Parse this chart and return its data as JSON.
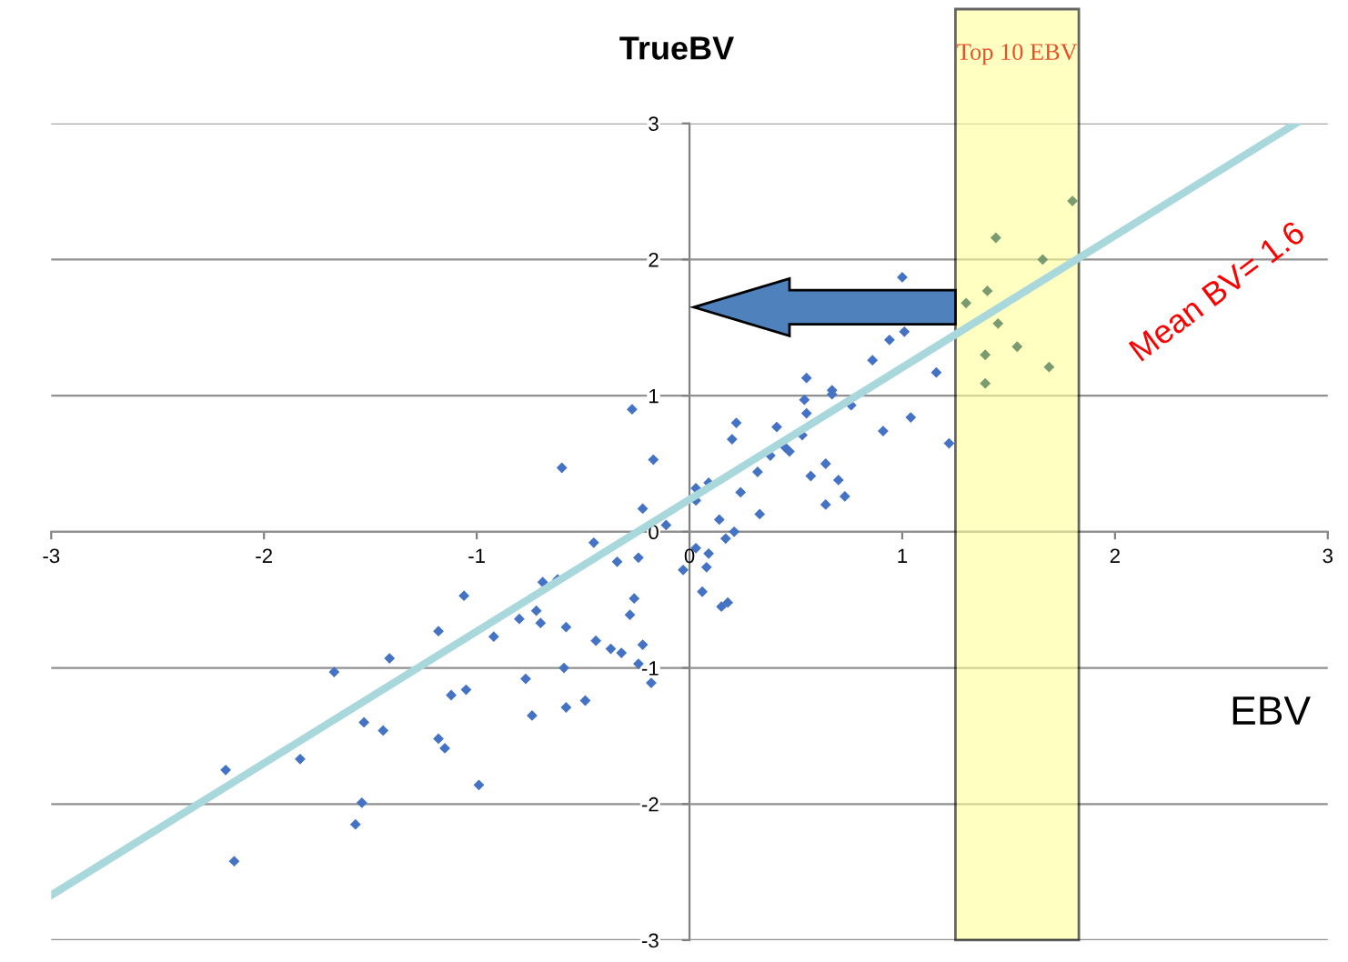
{
  "chart_data": {
    "type": "scatter",
    "xlabel": "EBV",
    "ylabel": "TrueBV",
    "xlim": [
      -3,
      3
    ],
    "ylim": [
      -3,
      3
    ],
    "xticks": [
      -3,
      -2,
      -1,
      0,
      1,
      2,
      3
    ],
    "yticks": [
      -3,
      -2,
      -1,
      0,
      1,
      2,
      3
    ],
    "grid": "y",
    "marker": "diamond",
    "series": [
      {
        "colors": [
          "#4472c4",
          "#4472c4",
          "#4472c4",
          "#4472c4",
          "#4472c4",
          "#4472c4",
          "#4472c4",
          "#4472c4",
          "#4472c4",
          "#4472c4",
          "#4472c4",
          "#4472c4",
          "#4472c4",
          "#4472c4",
          "#4472c4",
          "#4472c4",
          "#4472c4",
          "#4472c4",
          "#4472c4",
          "#4472c4",
          "#4472c4",
          "#4472c4",
          "#4472c4",
          "#4472c4",
          "#4472c4",
          "#4472c4",
          "#4472c4",
          "#4472c4",
          "#4472c4",
          "#4472c4",
          "#4472c4",
          "#4472c4",
          "#4472c4",
          "#4472c4",
          "#4472c4",
          "#4472c4",
          "#4472c4",
          "#4472c4",
          "#4472c4",
          "#4472c4",
          "#4472c4",
          "#4472c4",
          "#4472c4",
          "#4472c4",
          "#4472c4",
          "#4472c4",
          "#4472c4",
          "#4472c4",
          "#4472c4",
          "#4472c4",
          "#4472c4",
          "#4472c4",
          "#4472c4",
          "#4472c4",
          "#4472c4",
          "#4472c4",
          "#4472c4",
          "#4472c4",
          "#4472c4",
          "#4472c4",
          "#4472c4",
          "#4472c4",
          "#4472c4",
          "#4472c4",
          "#4472c4",
          "#4472c4",
          "#4472c4",
          "#4472c4",
          "#4472c4",
          "#4472c4",
          "#4472c4",
          "#4472c4",
          "#4472c4",
          "#4472c4",
          "#4472c4",
          "#4472c4",
          "#4472c4",
          "#4472c4",
          "#4472c4",
          "#4472c4",
          "#4472c4",
          "#4472c4",
          "#4472c4",
          "#4472c4",
          "#4472c4",
          "#4472c4",
          "#7a9a70",
          "#7a9a70",
          "#7a9a70",
          "#7a9a70",
          "#7a9a70",
          "#7a9a70",
          "#7a9a70",
          "#7a9a70",
          "#7a9a70",
          "#7a9a70"
        ],
        "x": [
          -0.6,
          -0.17,
          -0.22,
          -0.11,
          -0.45,
          -0.34,
          -0.24,
          -0.03,
          -0.69,
          -0.62,
          -1.06,
          -0.26,
          -0.28,
          -0.72,
          -0.8,
          -0.7,
          -0.58,
          -1.18,
          -0.92,
          -0.44,
          -0.37,
          -0.32,
          -0.22,
          -1.41,
          -0.24,
          -0.59,
          -0.18,
          -1.67,
          -0.77,
          -1.05,
          -1.12,
          -0.58,
          -0.49,
          -0.74,
          -1.53,
          -1.44,
          -1.18,
          -1.15,
          -1.83,
          -2.18,
          -0.99,
          -1.54,
          -1.57,
          -2.14,
          -0.27,
          1.0,
          1.01,
          0.94,
          0.86,
          1.16,
          0.55,
          0.67,
          0.67,
          0.54,
          0.76,
          0.55,
          0.22,
          0.41,
          1.04,
          0.91,
          0.53,
          0.2,
          1.22,
          0.45,
          0.47,
          0.38,
          0.64,
          0.32,
          0.57,
          0.7,
          0.09,
          0.03,
          0.24,
          0.73,
          0.03,
          0.64,
          0.33,
          0.14,
          0.21,
          0.17,
          0.03,
          0.09,
          0.08,
          0.06,
          0.18,
          0.15,
          1.8,
          1.44,
          1.66,
          1.4,
          1.3,
          1.45,
          1.54,
          1.39,
          1.69,
          1.39
        ],
        "values": [
          0.47,
          0.53,
          0.17,
          0.05,
          -0.08,
          -0.22,
          -0.19,
          -0.28,
          -0.37,
          -0.35,
          -0.47,
          -0.49,
          -0.61,
          -0.58,
          -0.64,
          -0.67,
          -0.7,
          -0.73,
          -0.77,
          -0.8,
          -0.86,
          -0.89,
          -0.83,
          -0.93,
          -0.97,
          -1.0,
          -1.11,
          -1.03,
          -1.08,
          -1.16,
          -1.2,
          -1.29,
          -1.24,
          -1.35,
          -1.4,
          -1.46,
          -1.52,
          -1.59,
          -1.67,
          -1.75,
          -1.86,
          -1.99,
          -2.15,
          -2.42,
          0.9,
          1.87,
          1.47,
          1.41,
          1.26,
          1.17,
          1.13,
          1.04,
          1.01,
          0.97,
          0.93,
          0.87,
          0.8,
          0.77,
          0.84,
          0.74,
          0.71,
          0.68,
          0.65,
          0.62,
          0.59,
          0.56,
          0.5,
          0.44,
          0.41,
          0.38,
          0.36,
          0.32,
          0.29,
          0.26,
          0.23,
          0.2,
          0.13,
          0.09,
          0.0,
          -0.05,
          -0.12,
          -0.16,
          -0.26,
          -0.44,
          -0.52,
          -0.55,
          2.43,
          2.16,
          2.0,
          1.77,
          1.68,
          1.53,
          1.36,
          1.3,
          1.21,
          1.09
        ]
      },
      {
        "type": "line",
        "marker": "none",
        "color": "#a8d8dc",
        "x": [
          -3.0,
          2.85
        ],
        "values": [
          -2.67,
          3.0
        ]
      }
    ],
    "bands": [
      {
        "axis": "x",
        "from": 1.25,
        "to": 1.83,
        "label": "Top 10 EBV",
        "color": "#ffff99"
      }
    ],
    "annotations": [
      "Mean BV= 1.6"
    ]
  }
}
